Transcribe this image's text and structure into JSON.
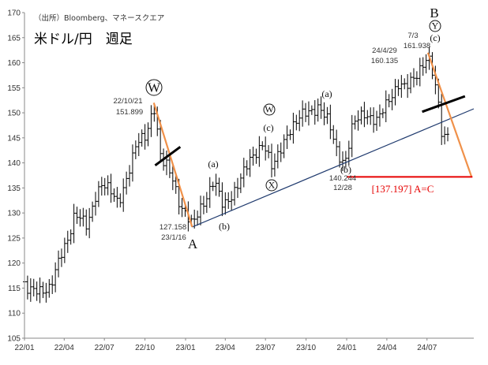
{
  "source": "（出所）Bloomberg、マネースクエア",
  "title": "米ドル/円　週足",
  "chart_data": {
    "type": "ohlc",
    "title": "米ドル/円　週足",
    "ylim": [
      105,
      170
    ],
    "yticks": [
      105,
      110,
      115,
      120,
      125,
      130,
      135,
      140,
      145,
      150,
      155,
      160,
      165,
      170
    ],
    "xlim": [
      "2022-01-01",
      "2024-10-15"
    ],
    "xticks": [
      "22/01",
      "22/04",
      "22/07",
      "22/10",
      "23/01",
      "23/04",
      "23/07",
      "23/10",
      "24/01",
      "24/04",
      "24/07"
    ],
    "grid": false,
    "path": [
      [
        "2022-01-01",
        115.2
      ],
      [
        "2022-01-10",
        114.0
      ],
      [
        "2022-02-01",
        115.0
      ],
      [
        "2022-03-01",
        114.8
      ],
      [
        "2022-03-14",
        118.5
      ],
      [
        "2022-03-28",
        122.5
      ],
      [
        "2022-04-11",
        125.5
      ],
      [
        "2022-04-25",
        130.0
      ],
      [
        "2022-05-23",
        127.0
      ],
      [
        "2022-06-13",
        134.5
      ],
      [
        "2022-06-27",
        136.0
      ],
      [
        "2022-08-01",
        132.0
      ],
      [
        "2022-08-29",
        139.5
      ],
      [
        "2022-09-12",
        143.5
      ],
      [
        "2022-10-03",
        145.5
      ],
      [
        "2022-10-21",
        151.9
      ],
      [
        "2022-11-07",
        140.0
      ],
      [
        "2022-11-21",
        139.0
      ],
      [
        "2022-12-05",
        136.5
      ],
      [
        "2022-12-19",
        132.0
      ],
      [
        "2023-01-16",
        127.2
      ],
      [
        "2023-02-06",
        131.5
      ],
      [
        "2023-03-06",
        136.5
      ],
      [
        "2023-03-27",
        131.0
      ],
      [
        "2023-04-17",
        134.0
      ],
      [
        "2023-05-29",
        140.5
      ],
      [
        "2023-06-26",
        144.5
      ],
      [
        "2023-07-17",
        138.5
      ],
      [
        "2023-08-21",
        146.5
      ],
      [
        "2023-09-25",
        149.5
      ],
      [
        "2023-10-30",
        151.5
      ],
      [
        "2023-11-20",
        148.0
      ],
      [
        "2023-12-11",
        142.0
      ],
      [
        "2023-12-28",
        140.2
      ],
      [
        "2024-01-15",
        147.5
      ],
      [
        "2024-02-12",
        150.0
      ],
      [
        "2024-03-11",
        148.5
      ],
      [
        "2024-04-01",
        151.5
      ],
      [
        "2024-04-29",
        156.5
      ],
      [
        "2024-05-13",
        155.0
      ],
      [
        "2024-06-03",
        156.5
      ],
      [
        "2024-06-24",
        160.5
      ],
      [
        "2024-07-03",
        161.9
      ],
      [
        "2024-07-15",
        157.5
      ],
      [
        "2024-07-29",
        150.0
      ],
      [
        "2024-08-05",
        144.0
      ],
      [
        "2024-08-19",
        146.5
      ]
    ],
    "annotations": [
      {
        "text": "22/10/21",
        "date": "2022-10-21",
        "value": 151.899
      },
      {
        "text": "151.899",
        "date": "2022-10-21",
        "value": 151.899
      },
      {
        "text": "127.158",
        "date": "2023-01-16",
        "value": 127.158
      },
      {
        "text": "23/1/16",
        "date": "2023-01-16",
        "value": 127.158
      },
      {
        "text": "140.244",
        "date": "2023-12-28",
        "value": 140.244
      },
      {
        "text": "12/28",
        "date": "2023-12-28",
        "value": 140.244
      },
      {
        "text": "24/4/29",
        "date": "2024-04-29",
        "value": 160.135
      },
      {
        "text": "160.135",
        "date": "2024-04-29",
        "value": 160.135
      },
      {
        "text": "7/3",
        "date": "2024-07-03",
        "value": 161.938
      },
      {
        "text": "161.938",
        "date": "2024-07-03",
        "value": 161.938
      }
    ],
    "wave_labels": [
      {
        "text": "W",
        "circled": true,
        "big": true,
        "date": "2022-10-21"
      },
      {
        "text": "A",
        "date": "2023-01-16"
      },
      {
        "text": "(a)",
        "date": "2023-03-06"
      },
      {
        "text": "(b)",
        "date": "2023-03-27"
      },
      {
        "text": "W",
        "circled": true,
        "date": "2023-06-26"
      },
      {
        "text": "(c)",
        "date": "2023-06-26"
      },
      {
        "text": "X",
        "circled": true,
        "date": "2023-07-17"
      },
      {
        "text": "(a)",
        "date": "2023-10-30"
      },
      {
        "text": "(b)",
        "date": "2023-12-28"
      },
      {
        "text": "B",
        "date": "2024-07-03"
      },
      {
        "text": "Y",
        "circled": true,
        "date": "2024-07-03"
      },
      {
        "text": "(c)",
        "date": "2024-07-03"
      }
    ],
    "trendline": {
      "from": [
        "2023-01-16",
        127.2
      ],
      "to": [
        "2024-10-15",
        150.8
      ],
      "color": "#1f3a6e"
    },
    "orange_lines": [
      {
        "from": [
          "2022-10-21",
          152.0
        ],
        "to": [
          "2023-01-16",
          127.2
        ]
      },
      {
        "from": [
          "2024-07-03",
          162.0
        ],
        "to": [
          "2024-10-10",
          137.2
        ]
      }
    ],
    "target": {
      "value": 137.197,
      "from": "2024-01-01",
      "to": "2024-10-12",
      "text": "[137.197] A=C",
      "color": "#e60000"
    },
    "colors": {
      "bars": "#000000",
      "orange": "#f0914a",
      "trend": "#1f3a6e",
      "target": "#e60000"
    }
  }
}
